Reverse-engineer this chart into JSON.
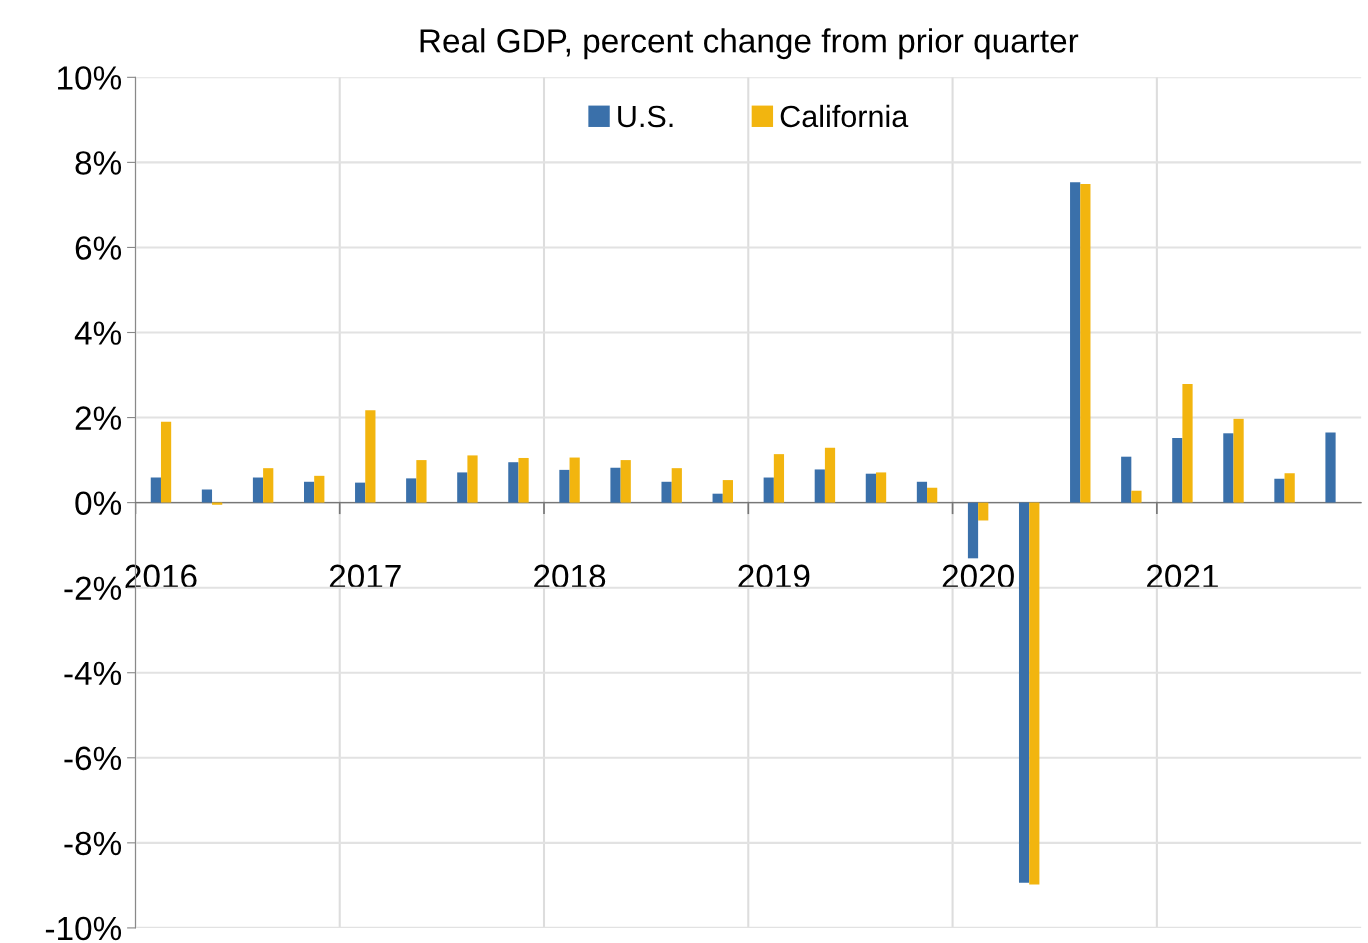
{
  "chart_data": {
    "type": "bar",
    "title": "Real GDP, percent change from prior quarter",
    "categories": [
      "2016",
      null,
      null,
      null,
      "2017",
      null,
      null,
      null,
      "2018",
      null,
      null,
      null,
      "2019",
      null,
      null,
      null,
      "2020",
      null,
      null,
      null,
      "2021",
      null,
      null,
      null
    ],
    "series": [
      {
        "name": "U.S.",
        "color": "#3a70aa",
        "values": [
          0.59,
          0.31,
          0.59,
          0.49,
          0.47,
          0.57,
          0.71,
          0.95,
          0.77,
          0.82,
          0.49,
          0.21,
          0.59,
          0.78,
          0.68,
          0.49,
          -1.31,
          -8.94,
          7.53,
          1.08,
          1.52,
          1.63,
          0.56,
          1.65
        ]
      },
      {
        "name": "California",
        "color": "#f2b50f",
        "values": [
          1.9,
          -0.05,
          0.81,
          0.63,
          2.17,
          1.0,
          1.11,
          1.05,
          1.06,
          1.0,
          0.81,
          0.53,
          1.14,
          1.29,
          0.71,
          0.35,
          -0.42,
          -8.98,
          7.49,
          0.28,
          2.79,
          1.97,
          0.69,
          null
        ]
      }
    ],
    "ylim": [
      -10,
      10
    ],
    "yticks": [
      {
        "value": -10,
        "label": "-10%"
      },
      {
        "value": -8,
        "label": "-8%"
      },
      {
        "value": -6,
        "label": "-6%"
      },
      {
        "value": -4,
        "label": "-4%"
      },
      {
        "value": -2,
        "label": "-2%"
      },
      {
        "value": 0,
        "label": "0%"
      },
      {
        "value": 2,
        "label": "2%"
      },
      {
        "value": 4,
        "label": "4%"
      },
      {
        "value": 6,
        "label": "6%"
      },
      {
        "value": 8,
        "label": "8%"
      },
      {
        "value": 10,
        "label": "10%"
      }
    ],
    "grid": true,
    "legend": "top"
  }
}
